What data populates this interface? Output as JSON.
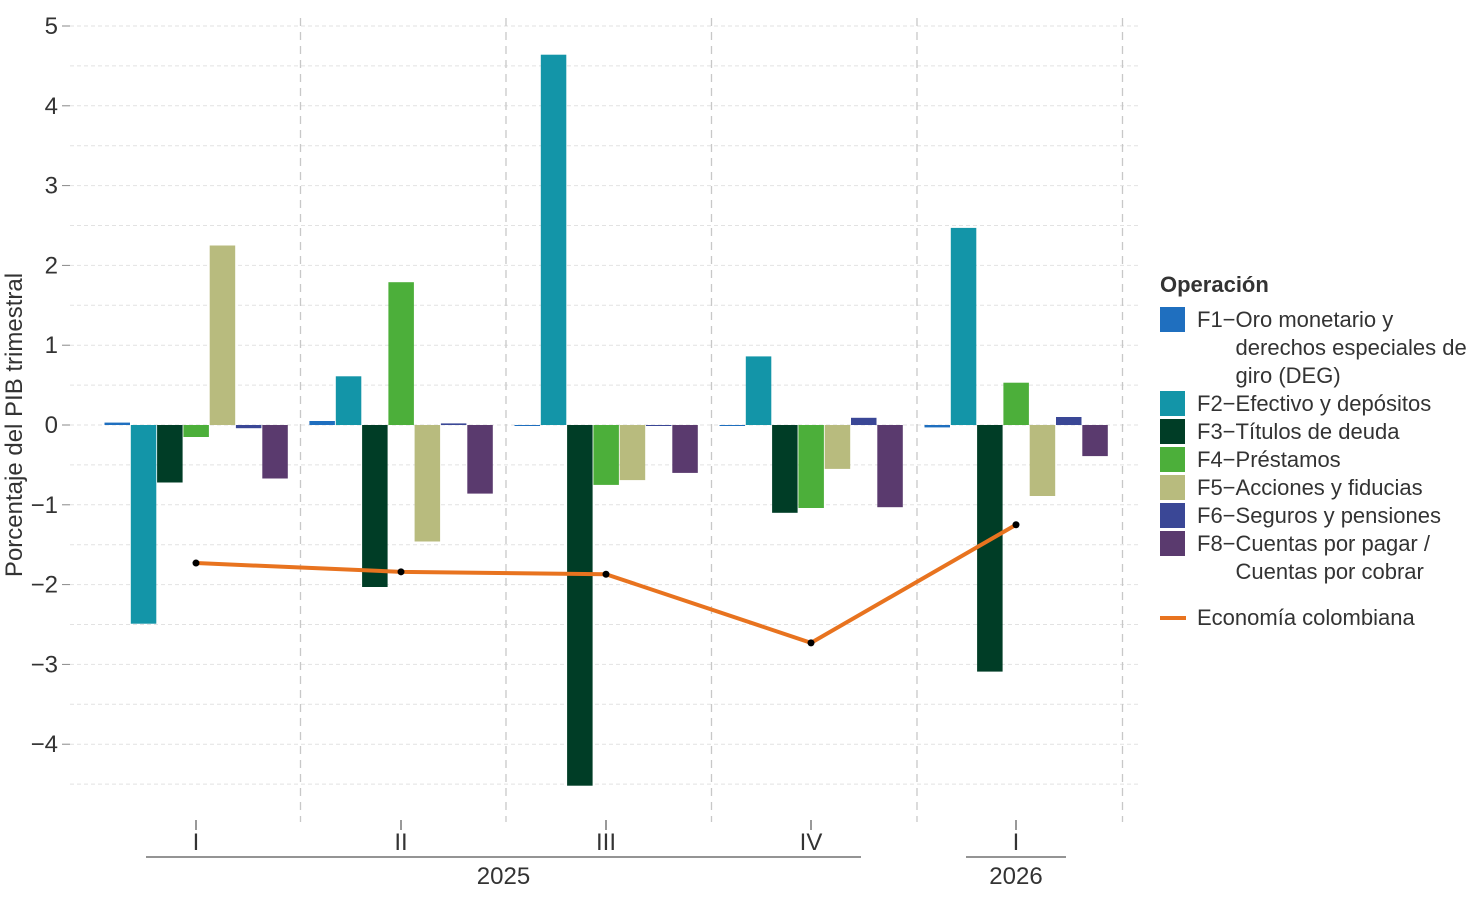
{
  "chart_data": {
    "type": "bar",
    "title": "",
    "ylabel": "Porcentaje del PIB trimestral",
    "ylim": [
      -4.9,
      5.2
    ],
    "yticks": [
      5,
      4,
      3,
      2,
      1,
      0,
      -1,
      -2,
      -3,
      -4
    ],
    "ytick_labels": [
      "5",
      "4",
      "3",
      "2",
      "1",
      "0",
      "−1",
      "−2",
      "−3",
      "−4"
    ],
    "categories": [
      "I",
      "II",
      "III",
      "IV",
      "I"
    ],
    "years": [
      {
        "label": "2025",
        "from": 0,
        "to": 3
      },
      {
        "label": "2026",
        "from": 4,
        "to": 4
      }
    ],
    "grid": true,
    "legend_title": "Operación",
    "legend_position": "right",
    "series": [
      {
        "code": "F1",
        "name": "Oro monetario y derechos especiales de giro (DEG)",
        "color": "#1f6fbf",
        "values": [
          0.03,
          0.05,
          0.0,
          0.0,
          -0.03
        ]
      },
      {
        "code": "F2",
        "name": "Efectivo y depósitos",
        "color": "#1395a8",
        "values": [
          -2.49,
          0.61,
          4.64,
          0.86,
          2.47
        ]
      },
      {
        "code": "F3",
        "name": "Títulos de deuda",
        "color": "#003d26",
        "values": [
          -0.72,
          -2.03,
          -4.52,
          -1.1,
          -3.09
        ]
      },
      {
        "code": "F4",
        "name": "Préstamos",
        "color": "#4caf3a",
        "values": [
          -0.15,
          1.79,
          -0.75,
          -1.04,
          0.53
        ]
      },
      {
        "code": "F5",
        "name": "Acciones y fiducias",
        "color": "#b8bb7e",
        "values": [
          2.25,
          -1.46,
          -0.69,
          -0.55,
          -0.89
        ]
      },
      {
        "code": "F6",
        "name": "Seguros y pensiones",
        "color": "#3a4796",
        "values": [
          -0.04,
          0.02,
          0.0,
          0.09,
          0.1
        ]
      },
      {
        "code": "F8",
        "name": "Cuentas por pagar / Cuentas por cobrar",
        "color": "#5a3a6e",
        "values": [
          -0.67,
          -0.86,
          -0.6,
          -1.03,
          -0.39
        ]
      }
    ],
    "line_series": {
      "name": "Economía colombiana",
      "color": "#e8731f",
      "values": [
        -1.73,
        -1.84,
        -1.87,
        -2.73,
        -1.25
      ]
    }
  }
}
